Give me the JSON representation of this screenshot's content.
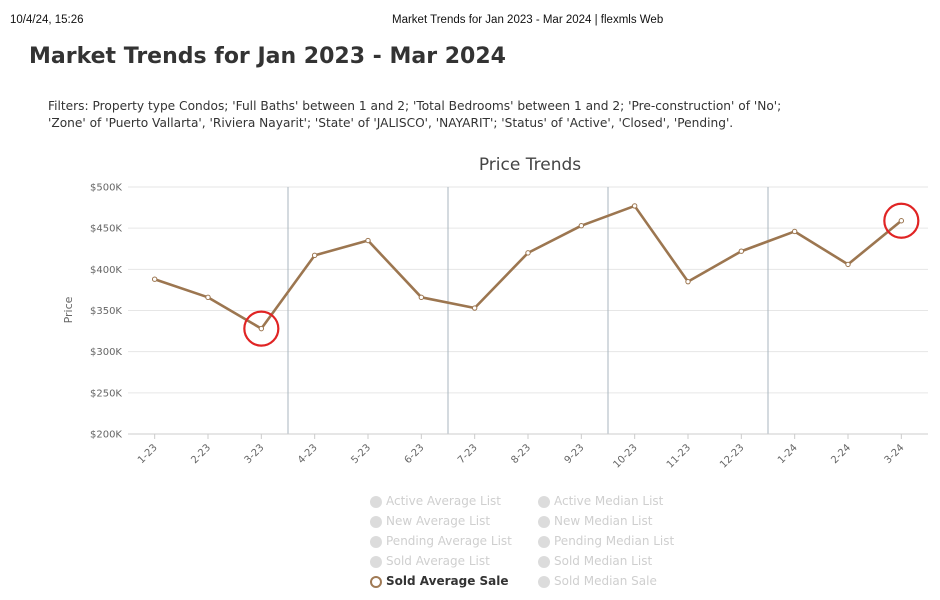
{
  "header": {
    "datetime": "10/4/24, 15:26",
    "tab_title": "Market Trends for Jan 2023 - Mar 2024 | flexmls Web"
  },
  "page_title": "Market Trends for Jan 2023 - Mar 2024",
  "filters": {
    "line1": "Filters: Property type Condos; 'Full Baths' between 1 and 2; 'Total Bedrooms' between 1 and 2; 'Pre-construction' of 'No';",
    "line2": "'Zone' of 'Puerto Vallarta', 'Riviera Nayarit'; 'State' of 'JALISCO', 'NAYARIT'; 'Status' of 'Active', 'Closed', 'Pending'."
  },
  "chart_data": {
    "type": "line",
    "title": "Price Trends",
    "ylabel": "Price",
    "xlabel": "",
    "categories": [
      "1-23",
      "2-23",
      "3-23",
      "4-23",
      "5-23",
      "6-23",
      "7-23",
      "8-23",
      "9-23",
      "10-23",
      "11-23",
      "12-23",
      "1-24",
      "2-24",
      "3-24"
    ],
    "y_ticks": [
      "$200K",
      "$250K",
      "$300K",
      "$350K",
      "$400K",
      "$450K",
      "$500K"
    ],
    "ylim": [
      200000,
      500000
    ],
    "grid": true,
    "series": [
      {
        "name": "Sold Average Sale",
        "color": "#9c7650",
        "values": [
          388000,
          366000,
          328000,
          417000,
          435000,
          366000,
          353000,
          420000,
          453000,
          477000,
          385000,
          422000,
          446000,
          406000,
          459000
        ]
      }
    ],
    "highlighted_points": [
      "3-23",
      "3-24"
    ],
    "highlight_color": "#e02424",
    "quarter_separators_after": [
      "3-23",
      "6-23",
      "9-23",
      "12-23"
    ]
  },
  "legend": {
    "left": [
      "Active Average List",
      "New Average List",
      "Pending Average List",
      "Sold Average List",
      "Sold Average Sale"
    ],
    "right": [
      "Active Median List",
      "New Median List",
      "Pending Median List",
      "Sold Median List",
      "Sold Median Sale"
    ],
    "active": "Sold Average Sale"
  }
}
